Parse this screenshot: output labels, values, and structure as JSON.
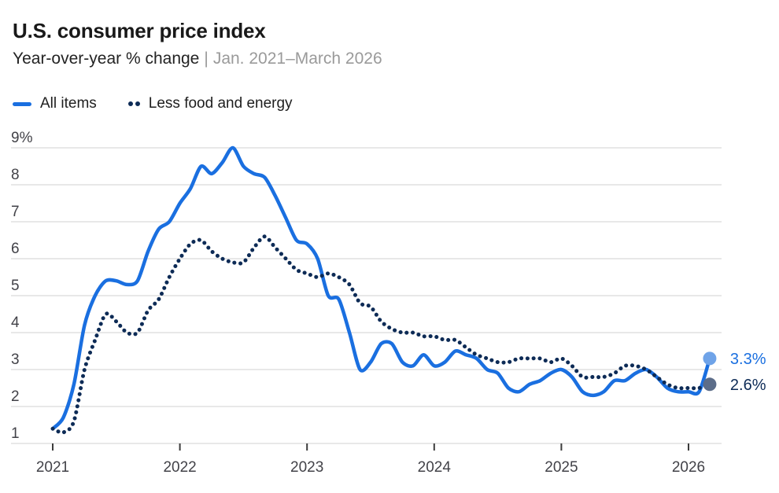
{
  "header": {
    "title": "U.S. consumer price index",
    "subtitle_metric": "Year-over-year % change",
    "subtitle_separator": "|",
    "subtitle_range": "Jan. 2021–March 2026"
  },
  "legend": {
    "items": [
      {
        "label": "All items",
        "swatch": "solid-line",
        "color": "#1a6fe0"
      },
      {
        "label": "Less food and energy",
        "swatch": "dotted-line",
        "color": "#0d2b56"
      }
    ]
  },
  "colors": {
    "grid": "#d9d9d9",
    "axis_tick": "#3c3c3c",
    "tick_text": "#424248",
    "title_text": "#191919",
    "subtitle_muted": "#9a9a9a",
    "background": "#ffffff"
  },
  "chart_data": {
    "type": "line",
    "title": "U.S. consumer price index",
    "ylabel": "Year-over-year % change",
    "x_start": "2021-01",
    "x_end": "2026-03",
    "x_frequency": "monthly",
    "xtick_labels": [
      "2021",
      "2022",
      "2023",
      "2024",
      "2025",
      "2026"
    ],
    "xtick_month_index": [
      0,
      12,
      24,
      36,
      48,
      60
    ],
    "ytick_values": [
      9,
      8,
      7,
      6,
      5,
      4,
      3,
      2,
      1
    ],
    "ytick_labels": [
      "9%",
      "8",
      "7",
      "6",
      "5",
      "4",
      "3",
      "2",
      "1"
    ],
    "ylim": [
      1,
      9
    ],
    "grid": "horizontal",
    "legend_position": "top-left",
    "series": [
      {
        "name": "All items",
        "color": "#1a6fe0",
        "line_style": "solid",
        "end_label": "3.3%",
        "end_dot_color": "#6fa3e8",
        "values": [
          1.4,
          1.7,
          2.6,
          4.2,
          5.0,
          5.4,
          5.4,
          5.3,
          5.4,
          6.2,
          6.8,
          7.0,
          7.5,
          7.9,
          8.5,
          8.3,
          8.6,
          9.0,
          8.5,
          8.3,
          8.2,
          7.7,
          7.1,
          6.5,
          6.4,
          6.0,
          5.0,
          4.9,
          4.0,
          3.0,
          3.2,
          3.7,
          3.7,
          3.2,
          3.1,
          3.4,
          3.1,
          3.2,
          3.5,
          3.4,
          3.3,
          3.0,
          2.9,
          2.5,
          2.4,
          2.6,
          2.7,
          2.9,
          3.0,
          2.8,
          2.4,
          2.3,
          2.4,
          2.7,
          2.7,
          2.9,
          3.0,
          2.8,
          2.5,
          2.4,
          2.4,
          2.4,
          3.3
        ]
      },
      {
        "name": "Less food and energy",
        "color": "#0d2b56",
        "line_style": "dotted",
        "end_label": "2.6%",
        "end_dot_color": "#5c6d89",
        "values": [
          1.4,
          1.3,
          1.6,
          3.0,
          3.8,
          4.5,
          4.3,
          4.0,
          4.0,
          4.6,
          4.9,
          5.5,
          6.0,
          6.4,
          6.5,
          6.2,
          6.0,
          5.9,
          5.9,
          6.3,
          6.6,
          6.3,
          6.0,
          5.7,
          5.6,
          5.5,
          5.6,
          5.5,
          5.3,
          4.8,
          4.7,
          4.3,
          4.1,
          4.0,
          4.0,
          3.9,
          3.9,
          3.8,
          3.8,
          3.6,
          3.4,
          3.3,
          3.2,
          3.2,
          3.3,
          3.3,
          3.3,
          3.2,
          3.3,
          3.1,
          2.8,
          2.8,
          2.8,
          2.9,
          3.1,
          3.1,
          3.0,
          2.8,
          2.6,
          2.5,
          2.5,
          2.5,
          2.6
        ]
      }
    ]
  }
}
